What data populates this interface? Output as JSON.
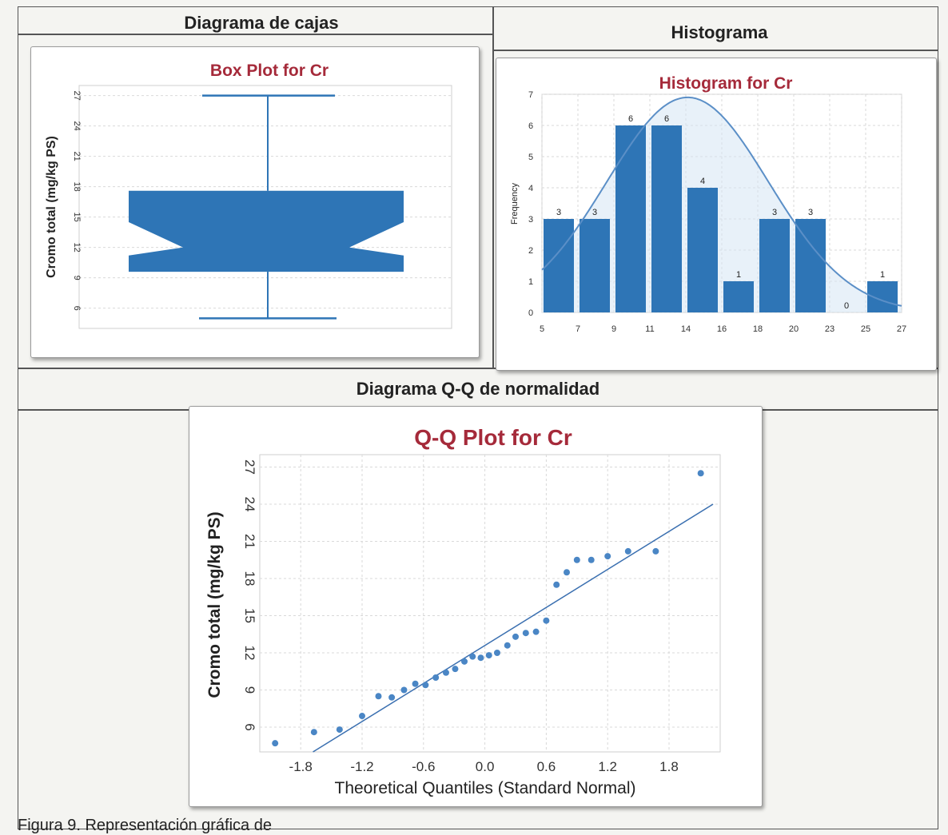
{
  "sections": {
    "boxplot_header": "Diagrama de cajas",
    "histogram_header": "Histograma",
    "qq_header": "Diagrama Q-Q de normalidad"
  },
  "caption": "Figura 9. Representación gráfica de",
  "colors": {
    "bar": "#2e75b6",
    "title": "#a52a3a",
    "grid": "#d9d9d9",
    "curve_fill": "#d6e6f4"
  },
  "chart_data": [
    {
      "type": "box",
      "title": "Box Plot for Cr",
      "ylabel": "Cromo total (mg/kg PS)",
      "xlabel": "",
      "ylim": [
        4,
        28
      ],
      "yticks": [
        "27",
        "24",
        "21",
        "18",
        "15",
        "12",
        "9",
        "6"
      ],
      "notched": true,
      "whisker_low": 5.0,
      "q1": 9.6,
      "notch_low": 11.2,
      "median": 12.0,
      "notch_high": 14.5,
      "q3": 17.6,
      "whisker_high": 27.0,
      "grid": true
    },
    {
      "type": "bar",
      "title": "Histogram for Cr",
      "ylabel": "Frequency",
      "xlabel": "",
      "ylim": [
        0,
        7
      ],
      "yticks": [
        "0",
        "1",
        "2",
        "3",
        "4",
        "5",
        "6",
        "7"
      ],
      "xtick_labels": [
        "5",
        "7",
        "9",
        "11",
        "14",
        "16",
        "18",
        "20",
        "23",
        "25",
        "27"
      ],
      "values": [
        3,
        3,
        6,
        6,
        4,
        1,
        3,
        3,
        0,
        1
      ],
      "data_labels": [
        "3",
        "3",
        "6",
        "6",
        "4",
        "1",
        "3",
        "3",
        "0",
        "1"
      ],
      "normal_curve": true,
      "grid": true
    },
    {
      "type": "scatter",
      "title": "Q-Q Plot for Cr",
      "xlabel": "Theoretical Quantiles (Standard Normal)",
      "ylabel": "Cromo total (mg/kg PS)",
      "xlim": [
        -2.2,
        2.3
      ],
      "ylim": [
        4,
        28
      ],
      "xticks": [
        "-1.8",
        "-1.2",
        "-0.6",
        "0.0",
        "0.6",
        "1.2",
        "1.8"
      ],
      "yticks": [
        "27",
        "24",
        "21",
        "18",
        "15",
        "12",
        "9",
        "6"
      ],
      "points": [
        [
          -2.05,
          4.7
        ],
        [
          -1.67,
          5.6
        ],
        [
          -1.42,
          5.8
        ],
        [
          -1.2,
          6.9
        ],
        [
          -1.04,
          8.5
        ],
        [
          -0.91,
          8.4
        ],
        [
          -0.79,
          9.0
        ],
        [
          -0.68,
          9.5
        ],
        [
          -0.58,
          9.4
        ],
        [
          -0.48,
          10.0
        ],
        [
          -0.38,
          10.4
        ],
        [
          -0.29,
          10.7
        ],
        [
          -0.2,
          11.3
        ],
        [
          -0.12,
          11.7
        ],
        [
          -0.04,
          11.6
        ],
        [
          0.04,
          11.8
        ],
        [
          0.12,
          12.0
        ],
        [
          0.22,
          12.6
        ],
        [
          0.3,
          13.3
        ],
        [
          0.4,
          13.6
        ],
        [
          0.5,
          13.7
        ],
        [
          0.6,
          14.6
        ],
        [
          0.7,
          17.5
        ],
        [
          0.8,
          18.5
        ],
        [
          0.9,
          19.5
        ],
        [
          1.04,
          19.5
        ],
        [
          1.2,
          19.8
        ],
        [
          1.4,
          20.2
        ],
        [
          1.67,
          20.2
        ],
        [
          2.11,
          26.5
        ]
      ],
      "reference_line": {
        "from": [
          -1.68,
          4.0
        ],
        "to": [
          2.23,
          24.0
        ]
      },
      "grid": true
    }
  ]
}
